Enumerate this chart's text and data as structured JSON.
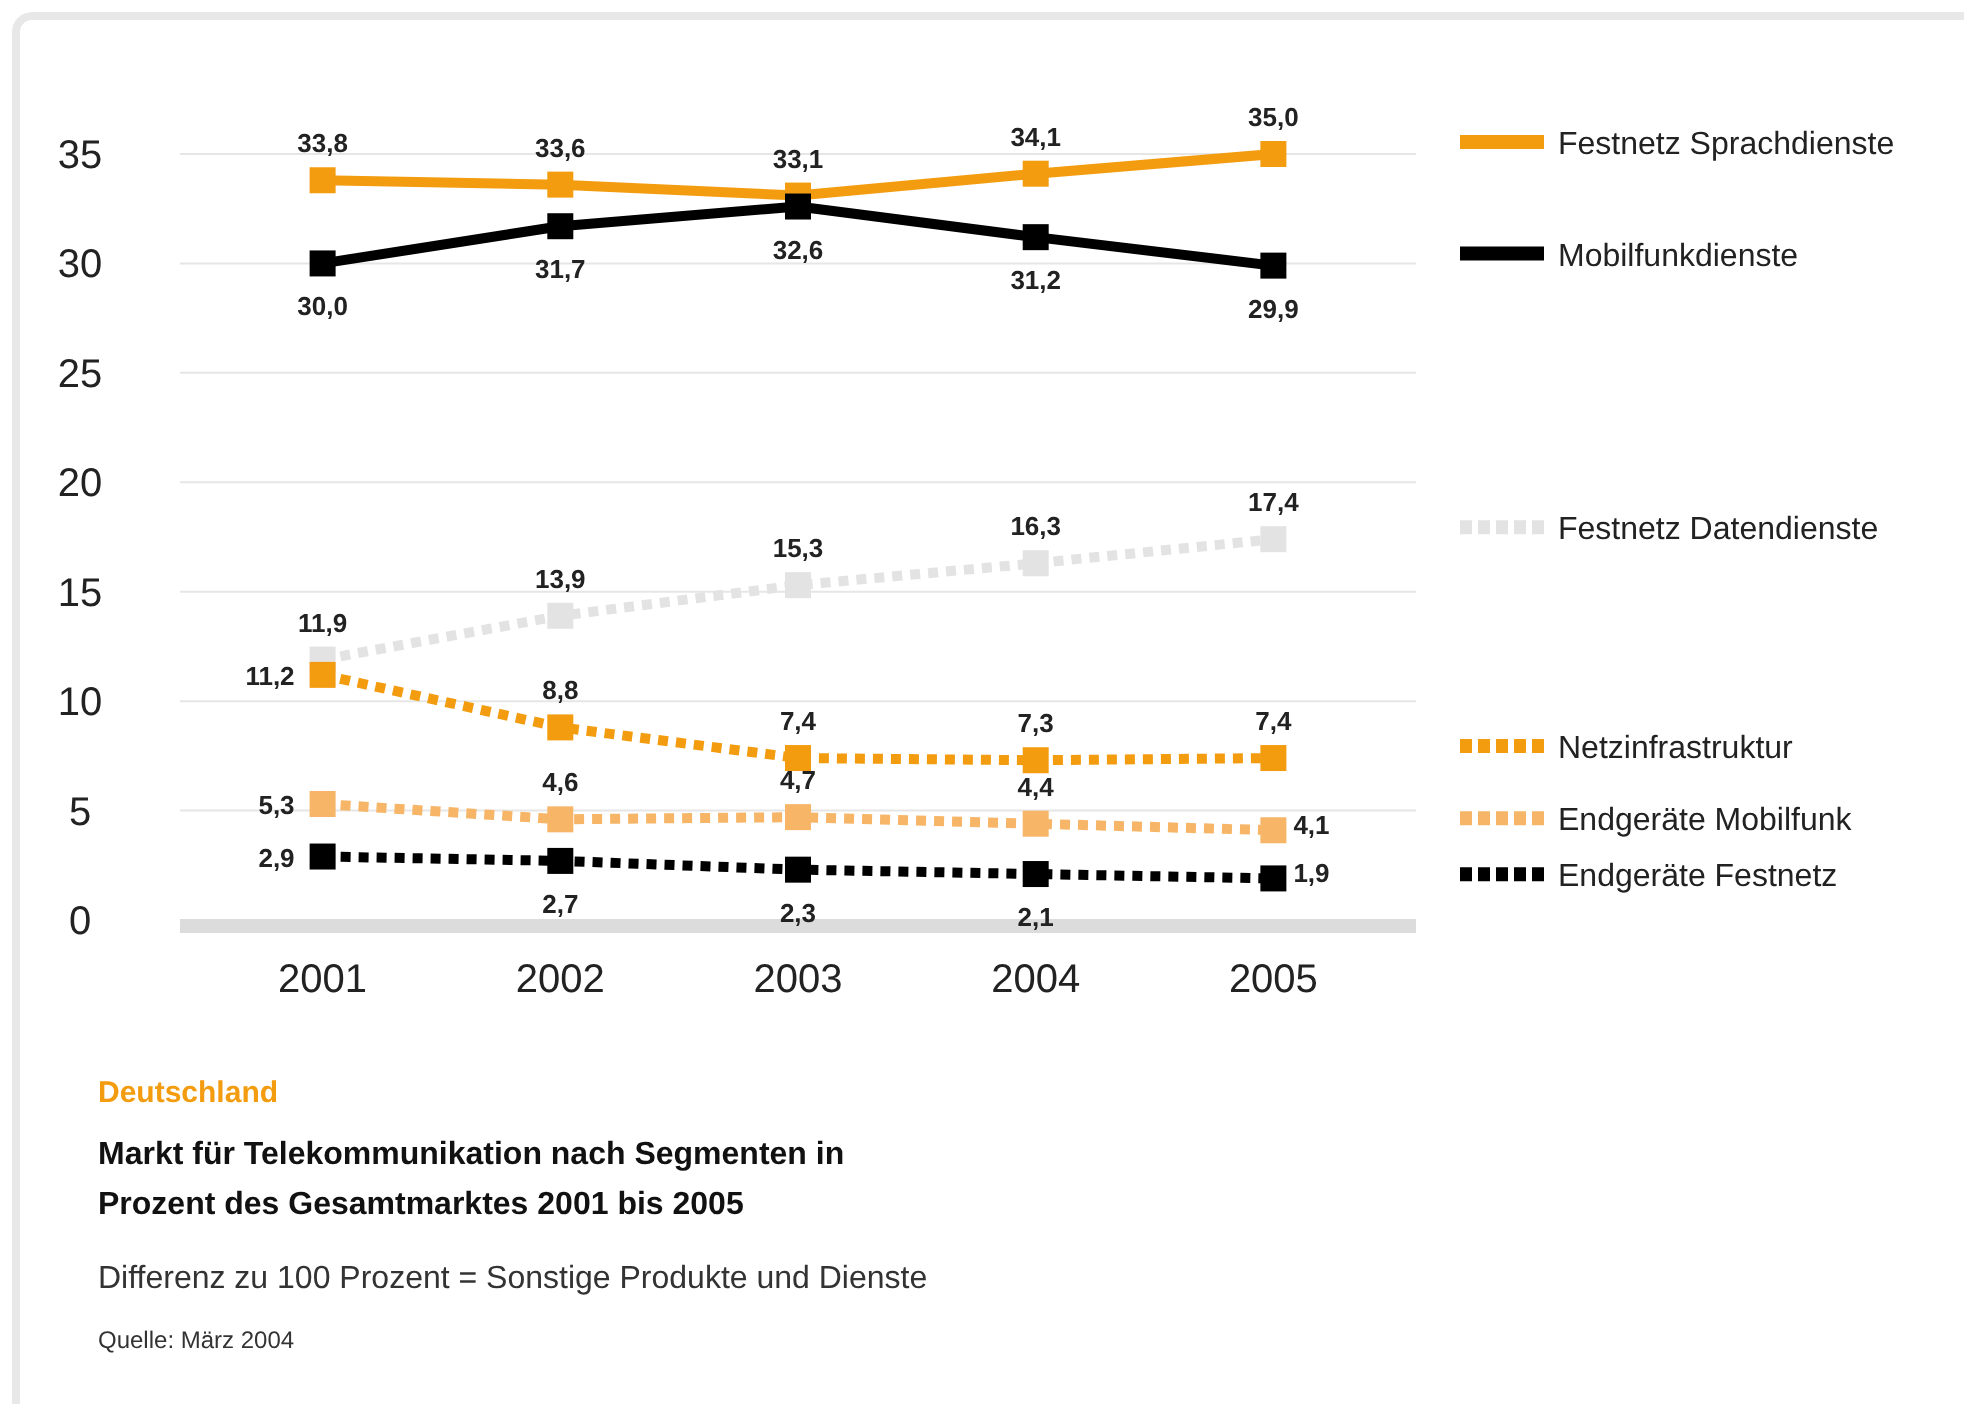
{
  "chart_data": {
    "type": "line",
    "title": "Deutschland",
    "subtitle": "Markt für Telekommunikation nach Segmenten in Prozent des Gesamtmarktes 2001 bis 2005",
    "annotations": [
      "Differenz zu 100 Prozent = Sonstige Produkte und Dienste",
      "Quelle: März 2004"
    ],
    "categories": [
      "2001",
      "2002",
      "2003",
      "2004",
      "2005"
    ],
    "ylim": [
      0,
      35
    ],
    "yticks": [
      0,
      5,
      10,
      15,
      20,
      25,
      30,
      35
    ],
    "grid": "y",
    "legend": "right",
    "marker": "square",
    "series": [
      {
        "name": "Festnetz Sprachdienste",
        "color": "#f39c0f",
        "line_style": "solid",
        "values": [
          33.8,
          33.6,
          33.1,
          34.1,
          35.0
        ],
        "value_labels": [
          "33,8",
          "33,6",
          "33,1",
          "34,1",
          "35,0"
        ]
      },
      {
        "name": "Mobilfunkdienste",
        "color": "#000000",
        "line_style": "solid",
        "values": [
          30.0,
          31.7,
          32.6,
          31.2,
          29.9
        ],
        "value_labels": [
          "30,0",
          "31,7",
          "32,6",
          "31,2",
          "29,9"
        ]
      },
      {
        "name": "Festnetz Datendienste",
        "color": "#e3e3e3",
        "line_style": "dotted",
        "values": [
          11.9,
          13.9,
          15.3,
          16.3,
          17.4
        ],
        "value_labels": [
          "11,9",
          "13,9",
          "15,3",
          "16,3",
          "17,4"
        ]
      },
      {
        "name": "Netzinfrastruktur",
        "color": "#f39c0f",
        "line_style": "dotted",
        "values": [
          11.2,
          8.8,
          7.4,
          7.3,
          7.4
        ],
        "value_labels": [
          "11,2",
          "8,8",
          "7,4",
          "7,3",
          "7,4"
        ]
      },
      {
        "name": "Endgeräte Mobilfunk",
        "color": "#f6b567",
        "line_style": "dotted",
        "values": [
          5.3,
          4.6,
          4.7,
          4.4,
          4.1
        ],
        "value_labels": [
          "5,3",
          "4,6",
          "4,7",
          "4,4",
          "4,1"
        ]
      },
      {
        "name": "Endgeräte Festnetz",
        "color": "#000000",
        "line_style": "dotted",
        "values": [
          2.9,
          2.7,
          2.3,
          2.1,
          1.9
        ],
        "value_labels": [
          "2,9",
          "2,7",
          "2,3",
          "2,1",
          "1,9"
        ]
      }
    ]
  }
}
